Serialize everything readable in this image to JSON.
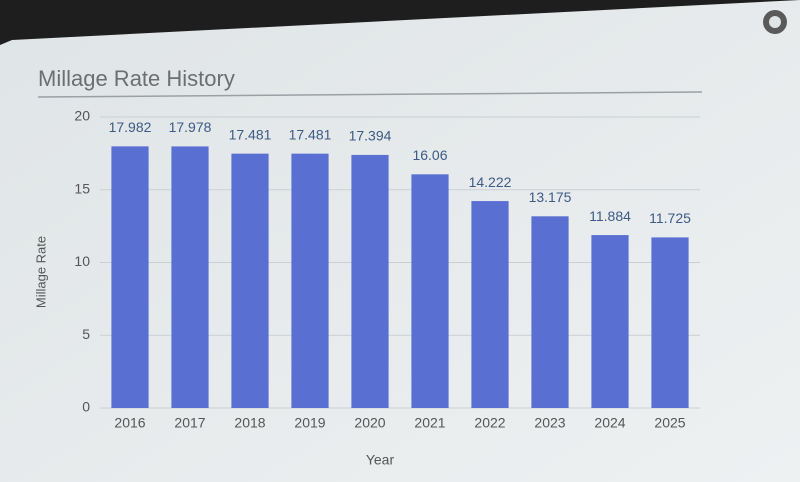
{
  "chart_data": {
    "type": "bar",
    "title": "Millage Rate History",
    "x_label": "Year",
    "y_label": "Millage Rate",
    "categories": [
      "2016",
      "2017",
      "2018",
      "2019",
      "2020",
      "2021",
      "2022",
      "2023",
      "2024",
      "2025"
    ],
    "values": [
      17.982,
      17.978,
      17.481,
      17.481,
      17.394,
      16.06,
      14.222,
      13.175,
      11.884,
      11.725
    ],
    "color": "#5a6fd2",
    "ylim": [
      0,
      20
    ],
    "yticks": [
      0,
      5,
      10,
      15,
      20
    ],
    "grid": true
  }
}
